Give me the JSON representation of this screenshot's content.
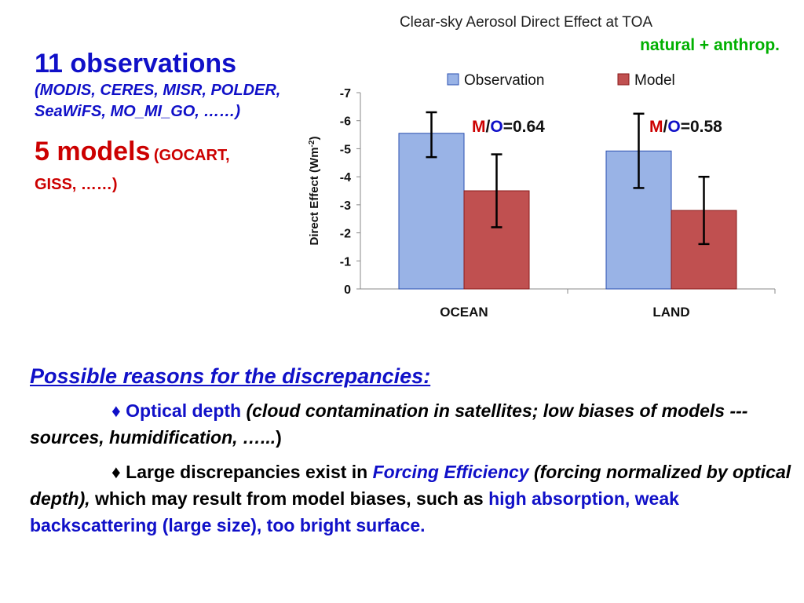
{
  "left": {
    "obs_title": "11 observations",
    "obs_list": "(MODIS, CERES, MISR, POLDER, SeaWiFS, MO_MI_GO, ……)",
    "models_title": "5 models",
    "models_list_a": "(GOCART,",
    "models_list_b": "GISS, ……)"
  },
  "chart_data": {
    "type": "bar",
    "title": "Clear-sky Aerosol Direct Effect at TOA",
    "subtitle": "natural + anthrop.",
    "xlabel": "",
    "ylabel": "Direct Effect (Wm",
    "ylabel_sup": "-2",
    "ylabel_close": ")",
    "categories": [
      "OCEAN",
      "LAND"
    ],
    "ylim": [
      0,
      -7
    ],
    "yticks": [
      "0",
      "-1",
      "-2",
      "-3",
      "-4",
      "-5",
      "-6",
      "-7"
    ],
    "ytick_values": [
      0,
      -1,
      -2,
      -3,
      -4,
      -5,
      -6,
      -7
    ],
    "legend_position": "top",
    "series": [
      {
        "name": "Observation",
        "values": [
          -5.55,
          -4.92
        ],
        "err_low": [
          -4.7,
          -3.6
        ],
        "err_high": [
          -6.3,
          -6.25
        ],
        "color": "#99b3e6"
      },
      {
        "name": "Model",
        "values": [
          -3.5,
          -2.8
        ],
        "err_low": [
          -2.2,
          -1.6
        ],
        "err_high": [
          -4.8,
          -4.0
        ],
        "color": "#c05050"
      }
    ],
    "annotations": [
      {
        "m": "M",
        "slash": "/",
        "o": "O",
        "value": "=0.64"
      },
      {
        "m": "M",
        "slash": "/",
        "o": "O",
        "value": "=0.58"
      }
    ]
  },
  "reasons": {
    "heading": "Possible reasons for the discrepancies:",
    "bullet": "♦",
    "r1_key": "Optical depth",
    "r1_desc": "(cloud contamination in satellites; low biases of models --- sources, humidification, …...",
    "r1_close": ")",
    "r2_prefix": "Large discrepancies exist in",
    "r2_key": "Forcing Efficiency",
    "r2_paren": "(forcing normalized by optical depth),",
    "r2_mid": "which may result from model biases, such as",
    "r2_end": "high absorption, weak backscattering (large size), too bright surface."
  },
  "colors": {
    "blue": "#1010c8",
    "red": "#cc0000",
    "green": "#00b000",
    "obs_fill": "#99b3e6",
    "model_fill": "#c05050"
  }
}
